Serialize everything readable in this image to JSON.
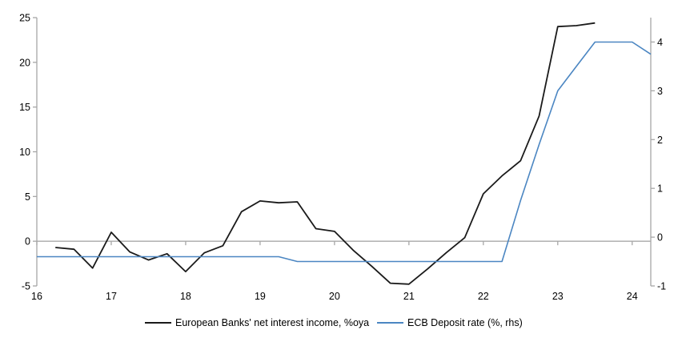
{
  "chart_data": {
    "type": "line",
    "x_axis": {
      "min": 16,
      "max": 24.25,
      "ticks": [
        16,
        17,
        18,
        19,
        20,
        21,
        22,
        23,
        24
      ]
    },
    "left_axis": {
      "min": -5,
      "max": 25,
      "ticks": [
        25,
        20,
        15,
        10,
        5,
        0,
        -5
      ]
    },
    "right_axis": {
      "min": -1,
      "max": 4.5,
      "ticks": [
        4,
        3,
        2,
        1,
        0,
        -1
      ]
    },
    "grid": "zero-line-only",
    "legend_position": "bottom",
    "series": [
      {
        "name": "European Banks' net interest income, %oya",
        "axis": "left",
        "color": "#1a1a1a",
        "width": 1.8,
        "x": [
          16.25,
          16.5,
          16.75,
          17.0,
          17.25,
          17.5,
          17.75,
          18.0,
          18.25,
          18.5,
          18.75,
          19.0,
          19.25,
          19.5,
          19.75,
          20.0,
          20.25,
          20.5,
          20.75,
          21.0,
          21.25,
          21.5,
          21.75,
          22.0,
          22.25,
          22.5,
          22.75,
          23.0,
          23.25,
          23.5
        ],
        "values": [
          -0.7,
          -0.9,
          -3.0,
          1.0,
          -1.2,
          -2.1,
          -1.4,
          -3.4,
          -1.3,
          -0.5,
          3.3,
          4.5,
          4.3,
          4.4,
          1.4,
          1.1,
          -1.0,
          -2.8,
          -4.7,
          -4.8,
          -3.1,
          -1.3,
          0.4,
          5.3,
          7.3,
          9.0,
          14.0,
          24.0,
          24.1,
          24.4
        ]
      },
      {
        "name": "ECB Deposit rate (%, rhs)",
        "axis": "right",
        "color": "#4b86c2",
        "width": 1.6,
        "x": [
          16.0,
          16.25,
          16.5,
          16.75,
          17.0,
          17.25,
          17.5,
          17.75,
          18.0,
          18.25,
          18.5,
          18.75,
          19.0,
          19.25,
          19.5,
          19.75,
          20.0,
          20.25,
          20.5,
          20.75,
          21.0,
          21.25,
          21.5,
          21.75,
          22.0,
          22.25,
          22.5,
          22.75,
          23.0,
          23.25,
          23.5,
          23.75,
          24.0,
          24.25
        ],
        "values": [
          -0.4,
          -0.4,
          -0.4,
          -0.4,
          -0.4,
          -0.4,
          -0.4,
          -0.4,
          -0.4,
          -0.4,
          -0.4,
          -0.4,
          -0.4,
          -0.4,
          -0.5,
          -0.5,
          -0.5,
          -0.5,
          -0.5,
          -0.5,
          -0.5,
          -0.5,
          -0.5,
          -0.5,
          -0.5,
          -0.5,
          0.75,
          1.9,
          3.0,
          3.5,
          4.0,
          4.0,
          4.0,
          3.75
        ]
      }
    ]
  },
  "colors": {
    "axis": "#a6a6a6",
    "zero_line": "#aaaaaa",
    "background": "#ffffff",
    "label_text": "#000000"
  }
}
